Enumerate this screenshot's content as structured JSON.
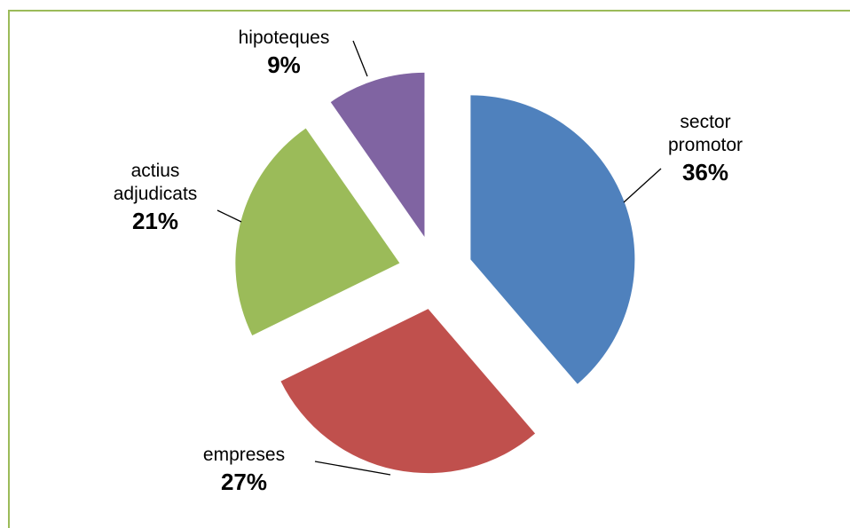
{
  "chart_data": {
    "type": "pie",
    "exploded": true,
    "categories": [
      "sector promotor",
      "empreses",
      "actius adjudicats",
      "hipoteques"
    ],
    "values": [
      36,
      27,
      21,
      9
    ],
    "value_labels": [
      "36%",
      "27%",
      "21%",
      "9%"
    ],
    "colors": [
      "#4f81bd",
      "#c0504d",
      "#9bbb59",
      "#8064a2"
    ]
  }
}
